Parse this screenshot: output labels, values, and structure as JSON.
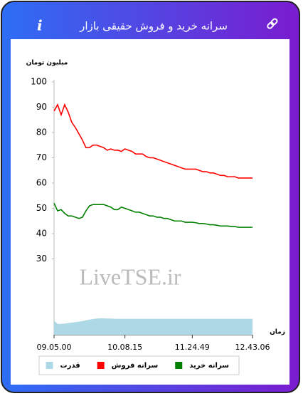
{
  "header": {
    "info_icon": "i"
  },
  "chart_data": {
    "type": "line",
    "title": "سرانه خرید و فروش حقیقی بازار",
    "y_label": "میلیون تومان",
    "x_label": "زمان",
    "watermark": "LiveTSE.ir",
    "categories": [
      "09.05.00",
      null,
      null,
      null,
      null,
      null,
      null,
      null,
      null,
      null,
      null,
      null,
      null,
      null,
      null,
      null,
      null,
      null,
      null,
      null,
      "10.08.15",
      null,
      null,
      null,
      null,
      null,
      null,
      null,
      null,
      null,
      null,
      null,
      null,
      null,
      null,
      null,
      null,
      null,
      null,
      "11.24.49",
      null,
      null,
      null,
      null,
      null,
      null,
      null,
      null,
      null,
      null,
      null,
      null,
      null,
      null,
      null,
      null,
      "12.43.06"
    ],
    "ylim": [
      0,
      100
    ],
    "yticks": [
      30,
      40,
      50,
      60,
      70,
      80,
      90,
      100
    ],
    "legend": "bottom",
    "series": [
      {
        "name": "سرانه خرید",
        "color": "#008000",
        "values": [
          52,
          49,
          49.5,
          48,
          47,
          47,
          46.5,
          46,
          46.5,
          49,
          51,
          51.5,
          51.5,
          51.5,
          51.5,
          51,
          50.5,
          49.5,
          49.5,
          50.5,
          50,
          49.5,
          49,
          48.5,
          48.5,
          48,
          47.5,
          47,
          47,
          46.5,
          46.5,
          46,
          46,
          45.5,
          45,
          45,
          45,
          44.5,
          44.5,
          44.5,
          44.3,
          44,
          44,
          43.8,
          43.5,
          43.5,
          43.3,
          43,
          43,
          43,
          42.8,
          42.8,
          42.5,
          42.5,
          42.5,
          42.5,
          42.5
        ]
      },
      {
        "name": "سرانه فروش",
        "color": "#ff0000",
        "values": [
          88.5,
          91,
          87,
          91,
          88,
          84,
          82,
          79.5,
          77,
          74,
          74,
          75,
          75,
          74.5,
          74,
          73,
          73.5,
          73,
          73,
          72.5,
          73.5,
          73,
          72.5,
          71.5,
          71.5,
          71.5,
          70.5,
          70,
          70,
          69.5,
          69,
          68.5,
          68,
          67.5,
          67,
          66.5,
          66,
          65.5,
          65.5,
          65.5,
          65.5,
          65,
          64.5,
          64.5,
          64,
          64,
          63.5,
          63,
          63,
          62.5,
          62.5,
          62.5,
          62,
          62,
          62,
          62,
          62
        ]
      },
      {
        "name": "قدرت",
        "color": "#add8e6",
        "type": "area",
        "values": [
          5.6,
          4.3,
          4.3,
          4.4,
          4.6,
          4.8,
          5,
          5.2,
          5.4,
          5.7,
          6,
          6.2,
          6.4,
          6.5,
          6.5,
          6.4,
          6.4,
          6.3,
          6.3,
          6.3,
          6.3,
          6.3,
          6.3,
          6.3,
          6.3,
          6.3,
          6.3,
          6.3,
          6.3,
          6.3,
          6.3,
          6.3,
          6.3,
          6.3,
          6.3,
          6.3,
          6.3,
          6.3,
          6.3,
          6.3,
          6.3,
          6.3,
          6.3,
          6.3,
          6.3,
          6.3,
          6.3,
          6.3,
          6.3,
          6.3,
          6.3,
          6.3,
          6.3,
          6.3,
          6.3,
          6.3,
          6.3
        ]
      }
    ]
  }
}
